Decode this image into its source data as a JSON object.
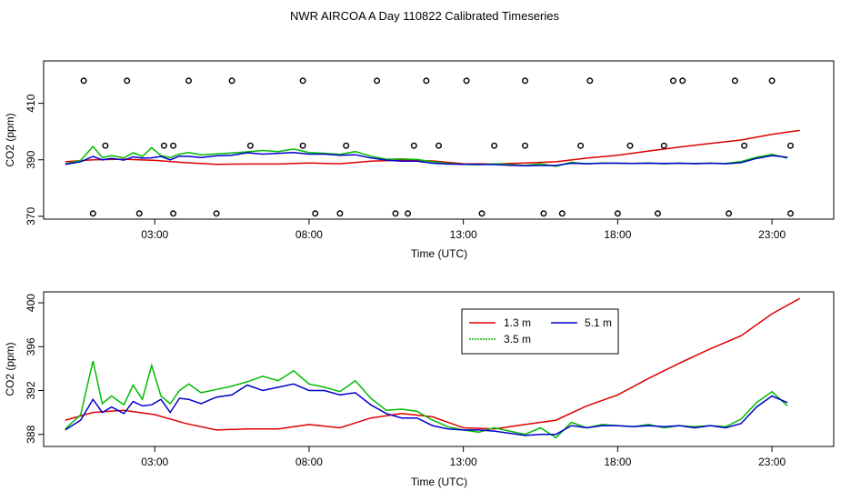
{
  "figure_title": "NWR AIRCOA A  Day 110822  Calibrated Timeseries",
  "colors": {
    "h1_3": "#dd0000",
    "h3_5": "#00bb00",
    "h5_1": "#0000cc",
    "axis": "#000000"
  },
  "chart_data": [
    {
      "type": "line",
      "panel": "top",
      "title": "",
      "xlabel": "Time (UTC)",
      "ylabel": "CO2 (ppm)",
      "xlim": [
        -0.6,
        25.0
      ],
      "ylim": [
        369,
        425
      ],
      "x_ticks": [
        3,
        8,
        13,
        18,
        23
      ],
      "x_tick_labels": [
        "03:00",
        "08:00",
        "13:00",
        "18:00",
        "23:00"
      ],
      "y_ticks": [
        370,
        390,
        410
      ],
      "y_tick_labels": [
        "370",
        "390",
        "410"
      ],
      "series": [
        {
          "name": "1.3 m",
          "color_key": "h1_3",
          "x": [
            0.1,
            1.0,
            2.0,
            3.0,
            4.0,
            5.0,
            6.0,
            7.0,
            8.0,
            9.0,
            10.0,
            11.0,
            12.0,
            13.0,
            14.0,
            15.0,
            16.0,
            17.0,
            18.0,
            19.0,
            20.0,
            21.0,
            22.0,
            23.0,
            23.9
          ],
          "y": [
            389.3,
            390.0,
            390.2,
            389.8,
            389.0,
            388.4,
            388.5,
            388.5,
            388.9,
            388.6,
            389.5,
            389.9,
            389.6,
            388.6,
            388.5,
            388.9,
            389.3,
            390.6,
            391.6,
            393.1,
            394.5,
            395.8,
            397.0,
            399.0,
            400.4
          ]
        },
        {
          "name": "3.5 m",
          "color_key": "h3_5",
          "x": [
            0.1,
            0.6,
            1.0,
            1.3,
            1.6,
            2.0,
            2.3,
            2.6,
            2.9,
            3.2,
            3.5,
            3.8,
            4.1,
            4.5,
            5.0,
            5.5,
            6.0,
            6.5,
            7.0,
            7.5,
            8.0,
            8.5,
            9.0,
            9.5,
            10.0,
            10.5,
            11.0,
            11.5,
            12.0,
            12.5,
            13.0,
            13.5,
            14.0,
            14.5,
            15.0,
            15.5,
            16.0,
            16.5,
            17.0,
            17.5,
            18.0,
            18.5,
            19.0,
            19.5,
            20.0,
            20.5,
            21.0,
            21.5,
            22.0,
            22.5,
            23.0,
            23.5
          ],
          "y": [
            388.5,
            389.8,
            394.7,
            390.8,
            391.5,
            390.7,
            392.5,
            391.2,
            394.3,
            391.5,
            390.8,
            392.0,
            392.6,
            391.8,
            392.1,
            392.4,
            392.8,
            393.3,
            392.9,
            393.8,
            392.6,
            392.3,
            391.9,
            392.9,
            391.3,
            390.2,
            390.3,
            390.1,
            389.3,
            388.7,
            388.4,
            388.2,
            388.6,
            388.3,
            388.0,
            388.6,
            387.7,
            389.1,
            388.6,
            388.9,
            388.8,
            388.7,
            388.9,
            388.6,
            388.8,
            388.7,
            388.8,
            388.7,
            389.4,
            390.9,
            391.9,
            390.6
          ]
        },
        {
          "name": "5.1 m",
          "color_key": "h5_1",
          "x": [
            0.1,
            0.6,
            1.0,
            1.3,
            1.6,
            2.0,
            2.3,
            2.6,
            2.9,
            3.2,
            3.5,
            3.8,
            4.1,
            4.5,
            5.0,
            5.5,
            6.0,
            6.5,
            7.0,
            7.5,
            8.0,
            8.5,
            9.0,
            9.5,
            10.0,
            10.5,
            11.0,
            11.5,
            12.0,
            12.5,
            13.0,
            13.5,
            14.0,
            14.5,
            15.0,
            15.5,
            16.0,
            16.5,
            17.0,
            17.5,
            18.0,
            18.5,
            19.0,
            19.5,
            20.0,
            20.5,
            21.0,
            21.5,
            22.0,
            22.5,
            23.0,
            23.5
          ],
          "y": [
            388.4,
            389.3,
            391.2,
            390.0,
            390.5,
            389.9,
            391.0,
            390.6,
            390.7,
            391.2,
            390.0,
            391.3,
            391.2,
            390.8,
            391.4,
            391.6,
            392.5,
            392.0,
            392.3,
            392.6,
            392.0,
            392.0,
            391.6,
            391.8,
            390.7,
            389.9,
            389.5,
            389.5,
            388.8,
            388.5,
            388.4,
            388.4,
            388.3,
            388.1,
            387.9,
            388.0,
            388.0,
            388.8,
            388.6,
            388.8,
            388.8,
            388.7,
            388.8,
            388.7,
            388.8,
            388.6,
            388.8,
            388.6,
            389.0,
            390.5,
            391.5,
            390.9
          ]
        }
      ],
      "calibration_points": {
        "x": [
          1.0,
          0.7,
          2.1,
          3.6,
          4.1,
          1.4,
          2.5,
          3.3,
          3.6,
          5.0,
          5.5,
          6.1,
          7.8,
          7.8,
          8.2,
          9.0,
          9.2,
          10.2,
          10.8,
          11.4,
          11.2,
          11.8,
          12.2,
          13.1,
          13.6,
          14.0,
          15.0,
          15.0,
          15.6,
          16.2,
          16.8,
          17.1,
          18.0,
          18.4,
          19.3,
          19.5,
          19.8,
          20.1,
          21.6,
          21.8,
          22.1,
          23.0,
          23.6,
          23.6
        ],
        "y": [
          371,
          418,
          418,
          371,
          418,
          395,
          371,
          395,
          395,
          371,
          418,
          395,
          418,
          395,
          371,
          371,
          395,
          418,
          371,
          395,
          371,
          418,
          395,
          418,
          371,
          395,
          418,
          395,
          371,
          371,
          395,
          418,
          371,
          395,
          371,
          395,
          418,
          418,
          371,
          418,
          395,
          418,
          395,
          371
        ]
      }
    },
    {
      "type": "line",
      "panel": "bottom",
      "title": "",
      "xlabel": "Time (UTC)",
      "ylabel": "CO2 (ppm)",
      "xlim": [
        -0.6,
        25.0
      ],
      "ylim": [
        386.9,
        401.0
      ],
      "x_ticks": [
        3,
        8,
        13,
        18,
        23
      ],
      "x_tick_labels": [
        "03:00",
        "08:00",
        "13:00",
        "18:00",
        "23:00"
      ],
      "y_ticks": [
        388,
        392,
        396,
        400
      ],
      "y_tick_labels": [
        "388",
        "392",
        "396",
        "400"
      ],
      "legend": {
        "position": "top-center",
        "entries": [
          "1.3 m",
          "5.1 m",
          "3.5 m"
        ]
      },
      "series": [
        {
          "name": "1.3 m",
          "color_key": "h1_3",
          "x": [
            0.1,
            1.0,
            2.0,
            3.0,
            4.0,
            5.0,
            6.0,
            7.0,
            8.0,
            9.0,
            10.0,
            11.0,
            12.0,
            13.0,
            14.0,
            15.0,
            16.0,
            17.0,
            18.0,
            19.0,
            20.0,
            21.0,
            22.0,
            23.0,
            23.9
          ],
          "y": [
            389.3,
            390.0,
            390.2,
            389.8,
            389.0,
            388.4,
            388.5,
            388.5,
            388.9,
            388.6,
            389.5,
            389.9,
            389.6,
            388.6,
            388.5,
            388.9,
            389.3,
            390.6,
            391.6,
            393.1,
            394.5,
            395.8,
            397.0,
            399.0,
            400.4
          ]
        },
        {
          "name": "3.5 m",
          "color_key": "h3_5",
          "x": [
            0.1,
            0.6,
            1.0,
            1.3,
            1.6,
            2.0,
            2.3,
            2.6,
            2.9,
            3.2,
            3.5,
            3.8,
            4.1,
            4.5,
            5.0,
            5.5,
            6.0,
            6.5,
            7.0,
            7.5,
            8.0,
            8.5,
            9.0,
            9.5,
            10.0,
            10.5,
            11.0,
            11.5,
            12.0,
            12.5,
            13.0,
            13.5,
            14.0,
            14.5,
            15.0,
            15.5,
            16.0,
            16.5,
            17.0,
            17.5,
            18.0,
            18.5,
            19.0,
            19.5,
            20.0,
            20.5,
            21.0,
            21.5,
            22.0,
            22.5,
            23.0,
            23.5
          ],
          "y": [
            388.5,
            389.8,
            394.7,
            390.8,
            391.5,
            390.7,
            392.5,
            391.2,
            394.3,
            391.5,
            390.8,
            392.0,
            392.6,
            391.8,
            392.1,
            392.4,
            392.8,
            393.3,
            392.9,
            393.8,
            392.6,
            392.3,
            391.9,
            392.9,
            391.3,
            390.2,
            390.3,
            390.1,
            389.3,
            388.7,
            388.4,
            388.2,
            388.6,
            388.3,
            388.0,
            388.6,
            387.7,
            389.1,
            388.6,
            388.9,
            388.8,
            388.7,
            388.9,
            388.6,
            388.8,
            388.7,
            388.8,
            388.7,
            389.4,
            390.9,
            391.9,
            390.6
          ]
        },
        {
          "name": "5.1 m",
          "color_key": "h5_1",
          "x": [
            0.1,
            0.6,
            1.0,
            1.3,
            1.6,
            2.0,
            2.3,
            2.6,
            2.9,
            3.2,
            3.5,
            3.8,
            4.1,
            4.5,
            5.0,
            5.5,
            6.0,
            6.5,
            7.0,
            7.5,
            8.0,
            8.5,
            9.0,
            9.5,
            10.0,
            10.5,
            11.0,
            11.5,
            12.0,
            12.5,
            13.0,
            13.5,
            14.0,
            14.5,
            15.0,
            15.5,
            16.0,
            16.5,
            17.0,
            17.5,
            18.0,
            18.5,
            19.0,
            19.5,
            20.0,
            20.5,
            21.0,
            21.5,
            22.0,
            22.5,
            23.0,
            23.5
          ],
          "y": [
            388.4,
            389.3,
            391.2,
            390.0,
            390.5,
            389.9,
            391.0,
            390.6,
            390.7,
            391.2,
            390.0,
            391.3,
            391.2,
            390.8,
            391.4,
            391.6,
            392.5,
            392.0,
            392.3,
            392.6,
            392.0,
            392.0,
            391.6,
            391.8,
            390.7,
            389.9,
            389.5,
            389.5,
            388.8,
            388.5,
            388.4,
            388.4,
            388.3,
            388.1,
            387.9,
            388.0,
            388.0,
            388.8,
            388.6,
            388.8,
            388.8,
            388.7,
            388.8,
            388.7,
            388.8,
            388.6,
            388.8,
            388.6,
            389.0,
            390.5,
            391.5,
            390.9
          ]
        }
      ]
    }
  ]
}
